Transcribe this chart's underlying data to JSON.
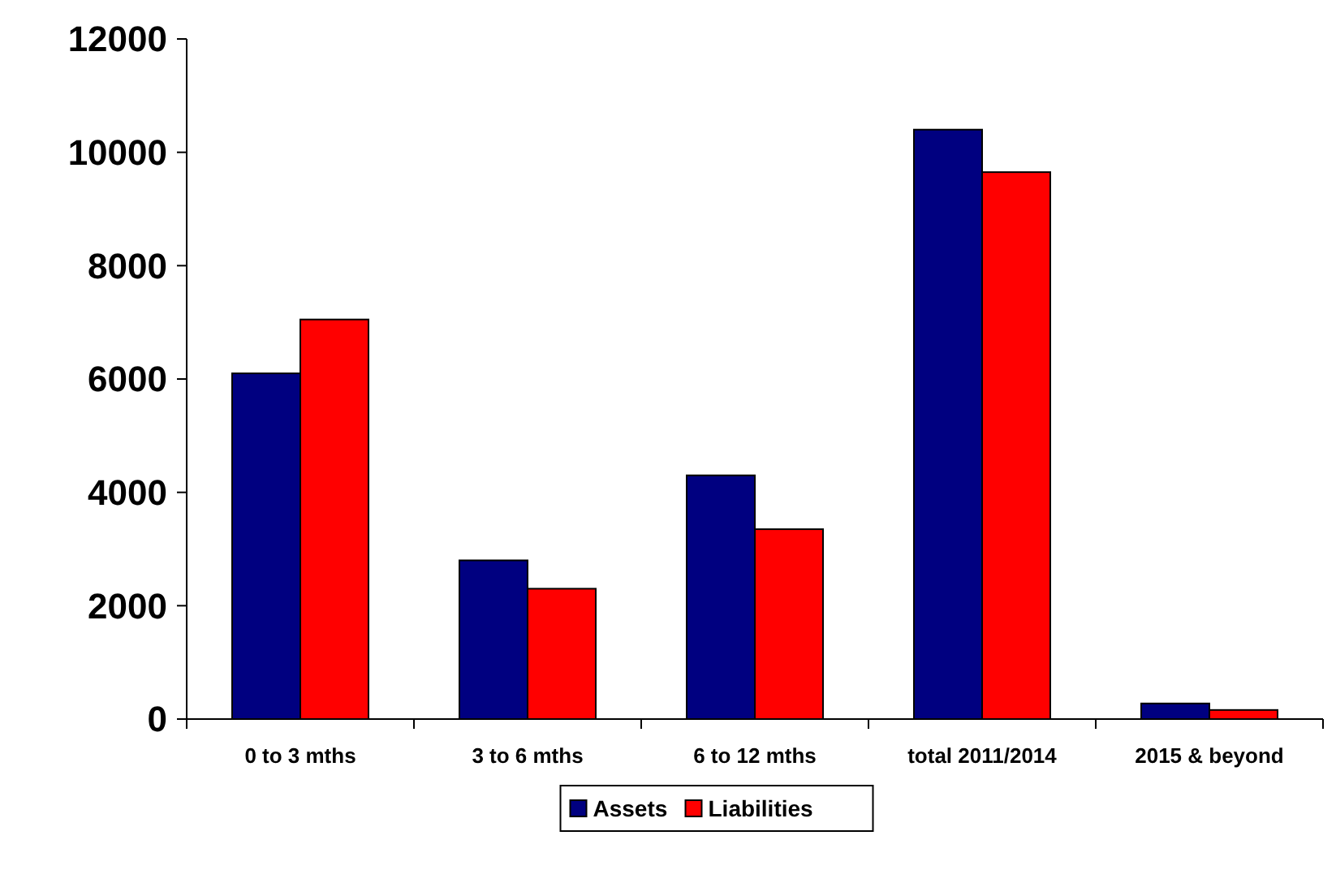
{
  "chart_data": {
    "type": "bar",
    "categories": [
      "0 to 3 mths",
      "3 to 6 mths",
      "6 to 12 mths",
      "total 2011/2014",
      "2015 & beyond"
    ],
    "series": [
      {
        "name": "Assets",
        "color": "#000080",
        "values": [
          6100,
          2800,
          4300,
          10400,
          275
        ]
      },
      {
        "name": "Liabilities",
        "color": "#ff0000",
        "values": [
          7050,
          2300,
          3350,
          9650,
          160
        ]
      }
    ],
    "ylim": [
      0,
      12000
    ],
    "yticks": [
      0,
      2000,
      4000,
      6000,
      8000,
      10000,
      12000
    ],
    "grid": false,
    "legend": "bottom"
  }
}
